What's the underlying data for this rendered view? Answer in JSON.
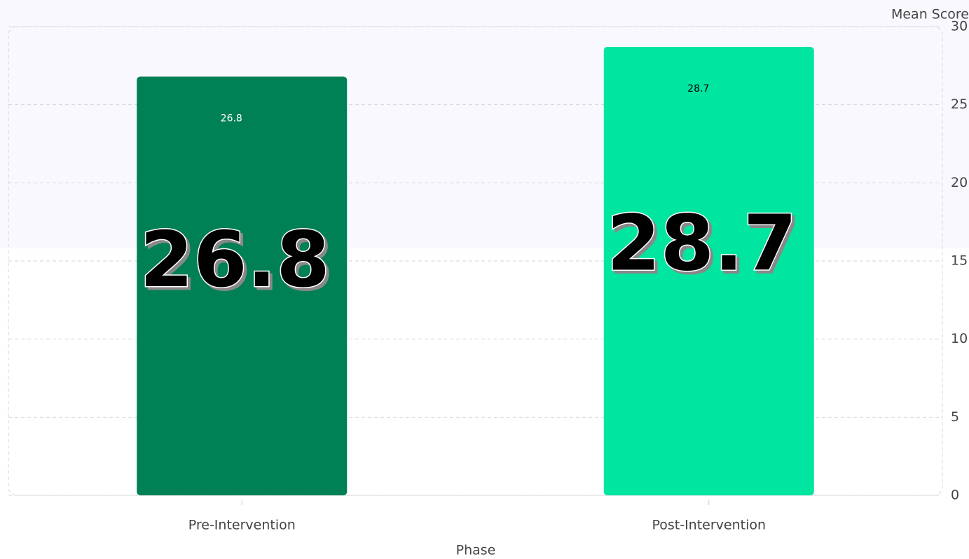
{
  "chart_data": {
    "type": "bar",
    "categories": [
      "Pre-Intervention",
      "Post-Intervention"
    ],
    "values": [
      26.8,
      28.7
    ],
    "colors": [
      "#008055",
      "#00e5a0"
    ],
    "label_colors": [
      "#ffffff",
      "#000000"
    ],
    "x_label": "Phase",
    "y_label": "Mean Score",
    "ylim": [
      0,
      30
    ],
    "yticks": [
      0,
      5,
      10,
      15,
      20,
      25,
      30
    ],
    "grid": true
  }
}
